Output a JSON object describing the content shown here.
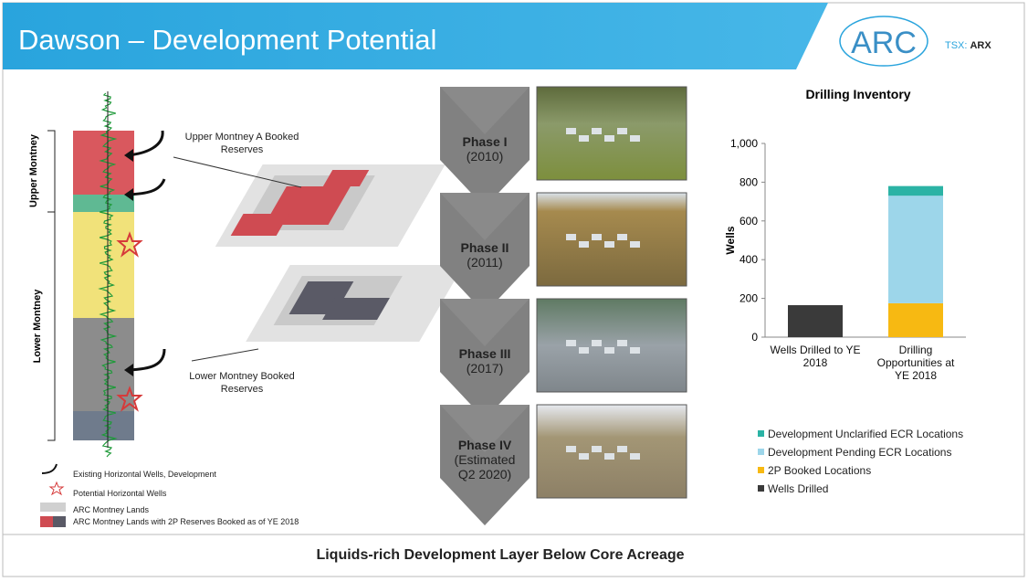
{
  "header": {
    "title": "Dawson – Development Potential",
    "logo": "ARC",
    "ticker_prefix": "TSX:",
    "ticker": "ARX"
  },
  "column": {
    "upper_label": "Upper Montney",
    "lower_label": "Lower Montney"
  },
  "maps": {
    "upper_label": "Upper Montney A Booked Reserves",
    "lower_label": "Lower Montney Booked Reserves"
  },
  "legend": [
    "Existing Horizontal Wells, Development",
    "Potential Horizontal Wells",
    "ARC Montney Lands",
    "ARC Montney Lands with 2P Reserves Booked as of YE 2018"
  ],
  "phases": [
    {
      "name": "Phase I",
      "date": "(2010)"
    },
    {
      "name": "Phase II",
      "date": "(2011)"
    },
    {
      "name": "Phase III",
      "date": "(2017)"
    },
    {
      "name": "Phase IV",
      "date": "(Estimated Q2 2020)"
    }
  ],
  "chart_data": {
    "type": "stacked_bar",
    "title": "Drilling Inventory",
    "y_label": "Wells",
    "categories": [
      "Wells Drilled to YE 2018",
      "Drilling Opportunities at YE 2018"
    ],
    "series": [
      {
        "name": "Wells Drilled",
        "color": "#3a3a3a",
        "values": [
          165,
          null
        ]
      },
      {
        "name": "2P Booked Locations",
        "color": "#f7b912",
        "values": [
          null,
          175
        ]
      },
      {
        "name": "Development Pending ECR Locations",
        "color": "#9dd6ea",
        "values": [
          null,
          555
        ]
      },
      {
        "name": "Development Unclarified ECR Locations",
        "color": "#2bb3a5",
        "values": [
          null,
          50
        ]
      }
    ],
    "ylim": [
      0,
      1000
    ],
    "yticks": [
      0,
      200,
      400,
      600,
      800,
      {
        "value": 1000,
        "label": "1,000"
      }
    ]
  },
  "footer": "Liquids-rich Development Layer Below Core Acreage"
}
